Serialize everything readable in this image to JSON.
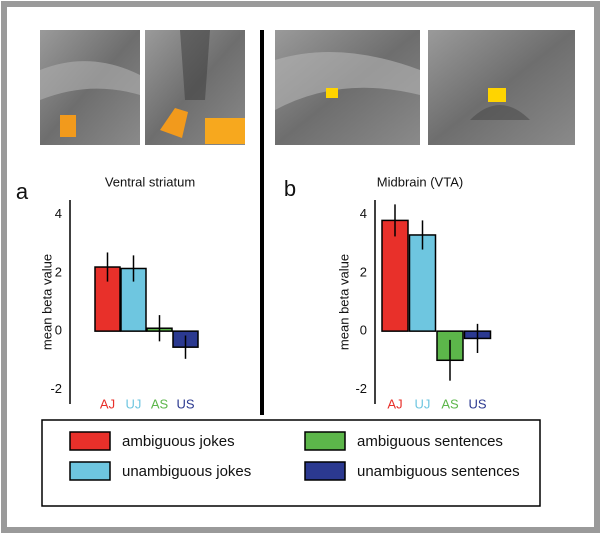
{
  "chart_data": [
    {
      "type": "bar",
      "label": "a",
      "title": "Ventral striatum",
      "ylabel": "mean beta value",
      "categories": [
        "AJ",
        "UJ",
        "AS",
        "US"
      ],
      "values": [
        2.2,
        2.15,
        0.1,
        -0.55
      ],
      "errors": [
        0.5,
        0.45,
        0.45,
        0.4
      ],
      "colors": [
        "#e8302a",
        "#6ec6e0",
        "#5cb64a",
        "#2b3990"
      ],
      "ylim": [
        -2.5,
        4.5
      ],
      "yticks": [
        4,
        2,
        0,
        -2
      ]
    },
    {
      "type": "bar",
      "label": "b",
      "title": "Midbrain (VTA)",
      "ylabel": "mean beta value",
      "categories": [
        "AJ",
        "UJ",
        "AS",
        "US"
      ],
      "values": [
        3.8,
        3.3,
        -1.0,
        -0.25
      ],
      "errors": [
        0.55,
        0.5,
        0.7,
        0.5
      ],
      "colors": [
        "#e8302a",
        "#6ec6e0",
        "#5cb64a",
        "#2b3990"
      ],
      "ylim": [
        -2.5,
        4.5
      ],
      "yticks": [
        4,
        2,
        0,
        -2
      ]
    }
  ],
  "legend": {
    "entries": [
      {
        "name": "ambiguous jokes",
        "color": "#e8302a"
      },
      {
        "name": "unambiguous jokes",
        "color": "#6ec6e0"
      },
      {
        "name": "ambiguous sentences",
        "color": "#5cb64a"
      },
      {
        "name": "unambiguous sentences",
        "color": "#2b3990"
      }
    ]
  }
}
